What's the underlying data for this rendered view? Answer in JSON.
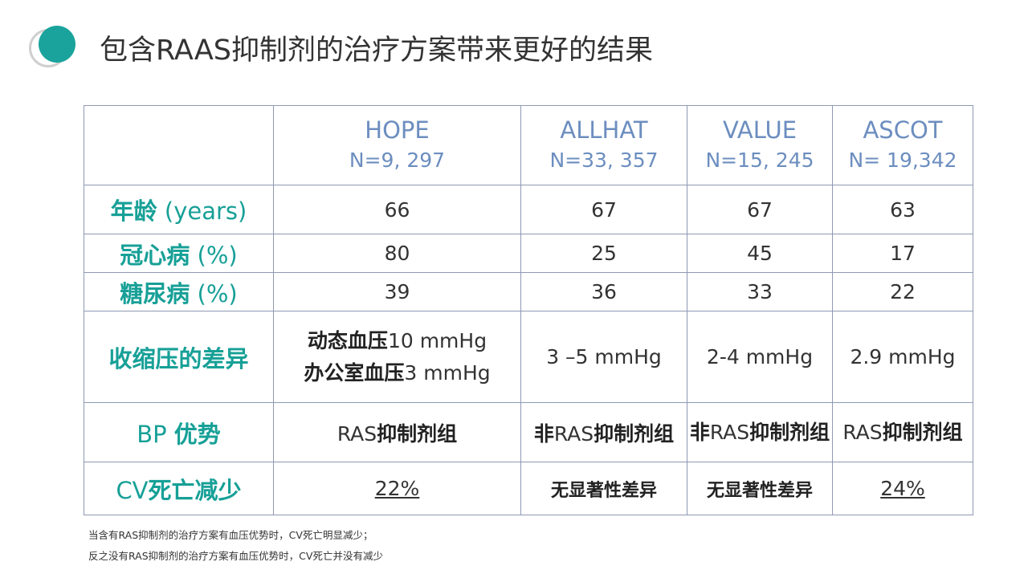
{
  "title": "包含RAAS抑制剂的治疗方案带来更好的结果",
  "brand_color": "#1aa39c",
  "header_color": "#6c8ebf",
  "logo_icon": "teal-circle-with-ring",
  "table": {
    "columns": [
      {
        "name": "HOPE",
        "n": "N=9, 297"
      },
      {
        "name": "ALLHAT",
        "n": "N=33, 357"
      },
      {
        "name": "VALUE",
        "n": "N=15, 245"
      },
      {
        "name": "ASCOT",
        "n": "N= 19,342"
      }
    ],
    "rows": {
      "age": {
        "label_cjk": "年龄",
        "label_en": " (years)",
        "values": [
          "66",
          "67",
          "67",
          "63"
        ]
      },
      "chd": {
        "label_cjk": "冠心病",
        "label_en": " (%)",
        "values": [
          "80",
          "25",
          "45",
          "17"
        ]
      },
      "diabetes": {
        "label_cjk": "糖尿病",
        "label_en": " (%)",
        "values": [
          "39",
          "36",
          "33",
          "22"
        ]
      },
      "sbp": {
        "label": "收缩压的差异",
        "hope_line1_cjk": "动态血压",
        "hope_line1_en": "10 mmHg",
        "hope_line2_cjk": "办公室血压",
        "hope_line2_en": "3 mmHg",
        "values": [
          "3 –5 mmHg",
          "2-4 mmHg",
          "2.9 mmHg"
        ]
      },
      "bp_adv": {
        "label_en": "BP ",
        "label_cjk": "优势",
        "hope_en": "RAS",
        "hope_cjk": "抑制剂组",
        "allhat_cjk1": "非",
        "allhat_en": "RAS",
        "allhat_cjk2": "抑制剂组",
        "value_cjk1": "非",
        "value_en": "RAS",
        "value_cjk2": "抑制剂组",
        "ascot_en": "RAS",
        "ascot_cjk": "抑制剂组"
      },
      "cv": {
        "label_en": "CV",
        "label_cjk": "死亡减少",
        "values": [
          "22%",
          "无显著性差异",
          "无显著性差异",
          "24%"
        ]
      }
    }
  },
  "notes": [
    "当含有RAS抑制剂的治疗方案有血压优势时，CV死亡明显减少；",
    "反之没有RAS抑制剂的治疗方案有血压优势时，CV死亡并没有减少"
  ]
}
